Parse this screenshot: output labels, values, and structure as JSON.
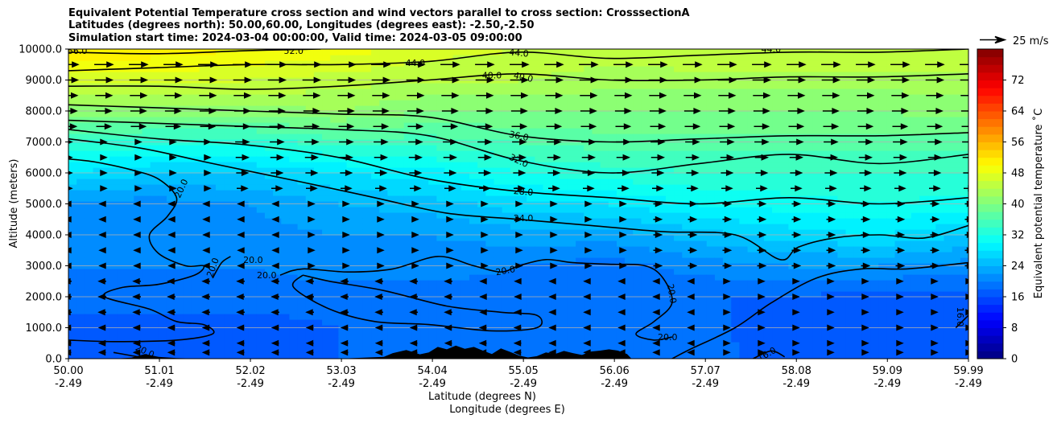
{
  "chart_data": {
    "type": "contourf",
    "title": [
      "Equivalent Potential Temperature cross section and wind vectors parallel to cross section: CrosssectionA",
      "Latitudes (degrees north): 50.00,60.00, Longitudes (degrees east): -2.50,-2.50",
      "Simulation start time: 2024-03-04 00:00:00, Valid time: 2024-03-05 09:00:00"
    ],
    "xlabel": "Latitude (degrees N)",
    "xlabel2": "Longitude (degrees E)",
    "ylabel": "Altitude (meters)",
    "x_range": [
      50.0,
      59.99
    ],
    "ylim": [
      0,
      10000
    ],
    "x_ticks": [
      {
        "lat": "50.00",
        "lon": "-2.49",
        "value": 50.0
      },
      {
        "lat": "51.01",
        "lon": "-2.49",
        "value": 51.01
      },
      {
        "lat": "52.02",
        "lon": "-2.49",
        "value": 52.02
      },
      {
        "lat": "53.03",
        "lon": "-2.49",
        "value": 53.03
      },
      {
        "lat": "54.04",
        "lon": "-2.49",
        "value": 54.04
      },
      {
        "lat": "55.05",
        "lon": "-2.49",
        "value": 55.05
      },
      {
        "lat": "56.06",
        "lon": "-2.49",
        "value": 56.06
      },
      {
        "lat": "57.07",
        "lon": "-2.49",
        "value": 57.07
      },
      {
        "lat": "58.08",
        "lon": "-2.49",
        "value": 58.08
      },
      {
        "lat": "59.09",
        "lon": "-2.49",
        "value": 59.09
      },
      {
        "lat": "59.99",
        "lon": "-2.49",
        "value": 59.99
      }
    ],
    "y_ticks": [
      {
        "label": "0.0",
        "value": 0
      },
      {
        "label": "1000.0",
        "value": 1000
      },
      {
        "label": "2000.0",
        "value": 2000
      },
      {
        "label": "3000.0",
        "value": 3000
      },
      {
        "label": "4000.0",
        "value": 4000
      },
      {
        "label": "5000.0",
        "value": 5000
      },
      {
        "label": "6000.0",
        "value": 6000
      },
      {
        "label": "7000.0",
        "value": 7000
      },
      {
        "label": "8000.0",
        "value": 8000
      },
      {
        "label": "9000.0",
        "value": 9000
      },
      {
        "label": "10000.0",
        "value": 10000
      }
    ],
    "colorbar": {
      "label": "Equivalent potential temperature ˚C",
      "min": 0,
      "max": 80,
      "step": 2,
      "ticks": [
        "0",
        "8",
        "16",
        "24",
        "32",
        "40",
        "48",
        "56",
        "64",
        "72"
      ],
      "tick_values": [
        0,
        8,
        16,
        24,
        32,
        40,
        48,
        56,
        64,
        72
      ]
    },
    "wind_key": {
      "label": "25 m/s",
      "speed": 25
    },
    "theta_e_profiles": {
      "x": [
        50.0,
        51.0,
        52.0,
        53.0,
        54.0,
        55.0,
        56.0,
        57.0,
        58.0,
        59.0,
        59.99
      ],
      "altitudes": [
        0,
        1000,
        2000,
        3000,
        4000,
        5000,
        6000,
        7000,
        8000,
        9000,
        10000
      ],
      "values": [
        [
          17,
          17,
          19,
          20,
          20,
          21,
          28,
          34,
          41,
          47,
          52
        ],
        [
          17,
          17,
          19,
          20,
          20,
          21,
          26,
          33,
          41,
          47,
          51
        ],
        [
          17,
          17,
          19,
          20,
          21,
          22,
          26,
          33,
          41,
          46,
          50
        ],
        [
          18,
          18,
          19,
          21,
          22,
          24,
          28,
          35,
          42,
          45,
          49
        ],
        [
          18,
          18,
          19,
          21,
          22,
          25,
          29,
          35,
          40,
          44,
          47
        ],
        [
          19,
          19,
          19,
          20,
          23,
          27,
          32,
          36,
          40,
          44,
          46
        ],
        [
          20,
          20,
          19,
          19,
          23,
          28,
          33,
          37,
          40,
          43,
          45
        ],
        [
          19,
          19,
          18,
          21,
          25,
          30,
          34,
          37,
          40,
          43,
          46
        ],
        [
          17,
          16,
          18,
          22,
          27,
          31,
          34,
          37,
          40,
          43,
          46
        ],
        [
          16,
          16,
          17,
          22,
          28,
          32,
          34,
          37,
          40,
          43,
          46
        ],
        [
          16,
          16,
          17,
          21,
          26,
          31,
          34,
          37,
          41,
          43,
          46
        ]
      ]
    },
    "contour_lines": [
      {
        "label": "16.0",
        "value": 16,
        "points": [
          [
            57.6,
            0
          ],
          [
            57.8,
            250
          ],
          [
            57.95,
            60
          ]
        ]
      },
      {
        "label": "16.0",
        "value": 16,
        "points": [
          [
            59.85,
            1000
          ],
          [
            59.99,
            1400
          ]
        ]
      },
      {
        "label": "20.0",
        "value": 20,
        "points": [
          [
            50.5,
            200
          ],
          [
            50.8,
            50
          ],
          [
            51.0,
            0
          ]
        ]
      },
      {
        "label": "20.0",
        "value": 20,
        "points": [
          [
            50.0,
            6450
          ],
          [
            50.3,
            6350
          ],
          [
            50.7,
            6100
          ],
          [
            51.0,
            5800
          ],
          [
            51.2,
            5200
          ],
          [
            51.1,
            4600
          ],
          [
            50.9,
            4000
          ],
          [
            51.0,
            3400
          ],
          [
            51.3,
            3000
          ],
          [
            51.5,
            3000
          ],
          [
            51.4,
            2700
          ],
          [
            51.0,
            2400
          ],
          [
            50.6,
            2300
          ],
          [
            50.4,
            2000
          ],
          [
            50.9,
            1600
          ],
          [
            51.2,
            1200
          ],
          [
            51.5,
            1100
          ],
          [
            51.6,
            800
          ],
          [
            51.2,
            600
          ],
          [
            50.5,
            550
          ],
          [
            50.0,
            600
          ]
        ]
      },
      {
        "label": "20.0",
        "value": 20,
        "points": [
          [
            51.6,
            2600
          ],
          [
            51.7,
            3100
          ],
          [
            51.8,
            3300
          ]
        ]
      },
      {
        "label": "20.0",
        "value": 20,
        "points": [
          [
            52.35,
            2700
          ],
          [
            52.6,
            2900
          ],
          [
            53.1,
            2800
          ],
          [
            53.6,
            2900
          ],
          [
            54.1,
            3300
          ],
          [
            54.5,
            3000
          ],
          [
            54.8,
            2800
          ],
          [
            55.0,
            3000
          ],
          [
            55.3,
            3200
          ],
          [
            55.6,
            3100
          ],
          [
            56.0,
            3050
          ],
          [
            56.4,
            3000
          ],
          [
            56.6,
            2600
          ],
          [
            56.7,
            1800
          ],
          [
            56.5,
            1200
          ],
          [
            56.3,
            800
          ],
          [
            56.5,
            600
          ],
          [
            56.7,
            700
          ]
        ]
      },
      {
        "label": "20.0",
        "value": 20,
        "points": [
          [
            52.6,
            2700
          ],
          [
            52.9,
            2500
          ],
          [
            53.5,
            2200
          ],
          [
            54.2,
            1700
          ],
          [
            54.8,
            1500
          ],
          [
            55.2,
            1400
          ],
          [
            55.2,
            1000
          ],
          [
            54.7,
            900
          ],
          [
            54.0,
            1100
          ],
          [
            53.4,
            1200
          ],
          [
            52.9,
            1600
          ],
          [
            52.5,
            2300
          ],
          [
            52.6,
            2700
          ]
        ]
      },
      {
        "label": "20.0",
        "value": 20,
        "points": [
          [
            56.7,
            0
          ],
          [
            56.9,
            300
          ],
          [
            57.4,
            1000
          ],
          [
            57.8,
            1800
          ],
          [
            58.3,
            2600
          ],
          [
            58.8,
            2900
          ],
          [
            59.3,
            2900
          ],
          [
            59.99,
            3100
          ]
        ]
      },
      {
        "label": "24.0",
        "value": 24,
        "points": [
          [
            50.0,
            7100
          ],
          [
            50.8,
            6800
          ],
          [
            51.6,
            6300
          ],
          [
            52.6,
            5700
          ],
          [
            53.4,
            5200
          ],
          [
            54.2,
            4700
          ],
          [
            55.0,
            4500
          ],
          [
            55.8,
            4300
          ],
          [
            56.6,
            4100
          ],
          [
            57.4,
            4000
          ],
          [
            57.9,
            3200
          ],
          [
            58.1,
            3600
          ],
          [
            58.5,
            3900
          ],
          [
            59.0,
            4000
          ],
          [
            59.5,
            3900
          ],
          [
            59.99,
            4300
          ]
        ]
      },
      {
        "label": "28.0",
        "value": 28,
        "points": [
          [
            50.0,
            7400
          ],
          [
            51.0,
            7100
          ],
          [
            52.0,
            6900
          ],
          [
            53.0,
            6500
          ],
          [
            54.0,
            5800
          ],
          [
            55.0,
            5400
          ],
          [
            56.0,
            5200
          ],
          [
            57.0,
            5000
          ],
          [
            58.0,
            5200
          ],
          [
            59.0,
            5000
          ],
          [
            59.99,
            5200
          ]
        ]
      },
      {
        "label": "32.0",
        "value": 32,
        "points": [
          [
            50.0,
            7700
          ],
          [
            51.0,
            7600
          ],
          [
            52.0,
            7500
          ],
          [
            53.0,
            7400
          ],
          [
            54.0,
            7200
          ],
          [
            55.0,
            6400
          ],
          [
            56.0,
            6000
          ],
          [
            57.0,
            6300
          ],
          [
            58.0,
            6600
          ],
          [
            59.0,
            6300
          ],
          [
            59.99,
            6600
          ]
        ]
      },
      {
        "label": "36.0",
        "value": 36,
        "points": [
          [
            50.0,
            8200
          ],
          [
            51.0,
            8100
          ],
          [
            52.0,
            8000
          ],
          [
            53.0,
            7900
          ],
          [
            54.0,
            7800
          ],
          [
            55.0,
            7200
          ],
          [
            56.0,
            7000
          ],
          [
            57.0,
            7100
          ],
          [
            58.0,
            7200
          ],
          [
            59.0,
            7200
          ],
          [
            59.99,
            7300
          ]
        ]
      },
      {
        "label": "40.0",
        "value": 40,
        "points": [
          [
            50.0,
            8800
          ],
          [
            51.0,
            8800
          ],
          [
            52.0,
            8700
          ],
          [
            53.0,
            8800
          ],
          [
            54.0,
            9000
          ],
          [
            55.0,
            9200
          ],
          [
            56.0,
            9000
          ],
          [
            57.0,
            9000
          ],
          [
            58.0,
            9100
          ],
          [
            59.0,
            9100
          ],
          [
            59.99,
            9200
          ]
        ]
      },
      {
        "label": "44.0",
        "value": 44,
        "points": [
          [
            50.0,
            9300
          ],
          [
            51.0,
            9400
          ],
          [
            52.0,
            9500
          ],
          [
            53.0,
            9500
          ],
          [
            54.0,
            9600
          ],
          [
            55.0,
            9900
          ],
          [
            56.0,
            9700
          ],
          [
            57.0,
            9800
          ],
          [
            58.0,
            9900
          ],
          [
            59.0,
            9900
          ],
          [
            59.99,
            10000
          ]
        ]
      },
      {
        "label": "52.0",
        "value": 52,
        "points": [
          [
            50.0,
            9900
          ],
          [
            51.0,
            9850
          ],
          [
            52.0,
            9950
          ],
          [
            52.8,
            10000
          ]
        ]
      }
    ],
    "contour_labels": [
      {
        "text": "56.0",
        "x": 50.1,
        "y": 9950,
        "rotate": 0
      },
      {
        "text": "52.0",
        "x": 52.5,
        "y": 9950,
        "rotate": 0
      },
      {
        "text": "44.0",
        "x": 53.85,
        "y": 9560,
        "rotate": 0
      },
      {
        "text": "44.0",
        "x": 55.0,
        "y": 9880,
        "rotate": 5
      },
      {
        "text": "44.0",
        "x": 57.8,
        "y": 10000,
        "rotate": 0
      },
      {
        "text": "40.0",
        "x": 54.7,
        "y": 9150,
        "rotate": 0
      },
      {
        "text": "40.0",
        "x": 55.05,
        "y": 9100,
        "rotate": 12
      },
      {
        "text": "36.0",
        "x": 55.0,
        "y": 7200,
        "rotate": 12
      },
      {
        "text": "32.0",
        "x": 55.0,
        "y": 6400,
        "rotate": 25
      },
      {
        "text": "28.0",
        "x": 55.05,
        "y": 5400,
        "rotate": 5
      },
      {
        "text": "24.0",
        "x": 55.05,
        "y": 4550,
        "rotate": 0
      },
      {
        "text": "20.0",
        "x": 51.25,
        "y": 5500,
        "rotate": -65
      },
      {
        "text": "20.0",
        "x": 51.6,
        "y": 2950,
        "rotate": -70
      },
      {
        "text": "20.0",
        "x": 52.05,
        "y": 3200,
        "rotate": 0
      },
      {
        "text": "20.0",
        "x": 52.2,
        "y": 2700,
        "rotate": 0
      },
      {
        "text": "20.0",
        "x": 54.85,
        "y": 2850,
        "rotate": -10
      },
      {
        "text": "20.0",
        "x": 56.7,
        "y": 2100,
        "rotate": 80
      },
      {
        "text": "20.0",
        "x": 56.65,
        "y": 700,
        "rotate": 0
      },
      {
        "text": "20.0",
        "x": 50.85,
        "y": 250,
        "rotate": 25
      },
      {
        "text": "16.0",
        "x": 59.9,
        "y": 1350,
        "rotate": 90
      },
      {
        "text": "16.0",
        "x": 57.75,
        "y": 150,
        "rotate": -30
      }
    ],
    "terrain": {
      "x": [
        50.0,
        50.5,
        50.7,
        50.85,
        51.0,
        51.2,
        51.5,
        52.0,
        53.0,
        53.5,
        53.6,
        53.75,
        53.9,
        54.0,
        54.1,
        54.2,
        54.3,
        54.4,
        54.5,
        54.6,
        54.7,
        54.8,
        54.9,
        55.0,
        55.1,
        55.2,
        55.3,
        55.4,
        55.5,
        55.6,
        55.7,
        55.8,
        55.9,
        56.0,
        56.1,
        56.15,
        56.2,
        56.25,
        56.8,
        57.5,
        58.0,
        59.99
      ],
      "heights": [
        0,
        0,
        30,
        150,
        60,
        20,
        0,
        0,
        0,
        60,
        180,
        280,
        140,
        200,
        380,
        300,
        420,
        320,
        380,
        260,
        150,
        330,
        220,
        100,
        40,
        80,
        200,
        150,
        250,
        180,
        120,
        230,
        260,
        300,
        260,
        200,
        150,
        0,
        0,
        0,
        0,
        0
      ]
    },
    "wind_vectors": {
      "columns": 27,
      "levels": [
        200,
        500,
        1000,
        1500,
        2000,
        2500,
        3000,
        3500,
        4000,
        4500,
        5000,
        5500,
        6000,
        6500,
        7000,
        7500,
        8000,
        8500,
        9000,
        9500
      ]
    }
  }
}
